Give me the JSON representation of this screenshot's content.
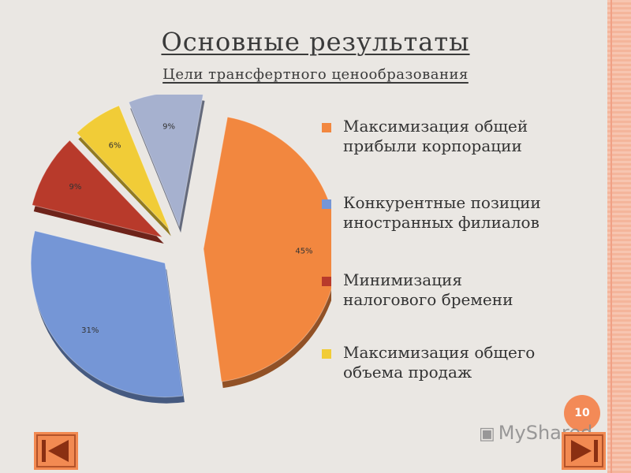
{
  "slide": {
    "title": "Основные результаты",
    "subtitle": "Цели трансфертного ценообразования",
    "page_number": "10",
    "watermark": "MyShared"
  },
  "nav": {
    "prev_icon": "prev-slide-icon",
    "next_icon": "next-slide-icon"
  },
  "chart_data": {
    "type": "pie",
    "title": "",
    "series": [
      {
        "values": [
          45,
          31,
          9,
          6,
          9
        ]
      }
    ],
    "categories": [
      "Максимизация общей прибыли корпорации",
      "Конкурентные позиции иностранных филиалов",
      "Минимизация налогового бремени",
      "Максимизация общего объема продаж",
      ""
    ],
    "data_labels": [
      "45%",
      "31%",
      "9%",
      "6%",
      "9%"
    ],
    "colors": [
      "#f2873f",
      "#7596d6",
      "#b83a2b",
      "#f1cc37",
      "#a6b1cf"
    ],
    "exploded": true,
    "legend_position": "right"
  },
  "legend": {
    "items": [
      {
        "label": "Максимизация общей прибыли корпорации",
        "color": "#f2873f"
      },
      {
        "label": "Конкурентные позиции иностранных филиалов",
        "color": "#7596d6"
      },
      {
        "label": "Минимизация налогового бремени",
        "color": "#b83a2b"
      },
      {
        "label": "Максимизация общего объема продаж",
        "color": "#f1cc37"
      }
    ]
  }
}
